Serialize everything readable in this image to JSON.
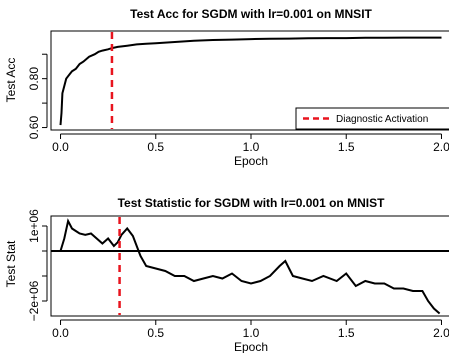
{
  "chart_data": [
    {
      "type": "line",
      "title": "Test Acc for SGDM with lr=0.001 on MNSIT",
      "xlabel": "Epoch",
      "ylabel": "Test Acc",
      "xlim": [
        -0.05,
        2.05
      ],
      "ylim": [
        0.59,
        0.995
      ],
      "xticks": [
        0.0,
        0.5,
        1.0,
        1.5,
        2.0
      ],
      "xtick_labels": [
        "0.0",
        "0.5",
        "1.0",
        "1.5",
        "2.0"
      ],
      "yticks": [
        0.6,
        0.7,
        0.8,
        0.9
      ],
      "ytick_labels": [
        "0.60",
        "",
        "0.80",
        ""
      ],
      "grid": false,
      "legend": {
        "placement": "bottom-right",
        "entries": [
          {
            "label": "Diagnostic Activation",
            "style": "dashed",
            "color": "#e8141e"
          }
        ]
      },
      "vline": {
        "x": 0.27,
        "color": "#e8141e",
        "style": "dashed"
      },
      "series": [
        {
          "color": "#000000",
          "x": [
            0.0,
            0.005,
            0.01,
            0.02,
            0.03,
            0.04,
            0.05,
            0.06,
            0.08,
            0.1,
            0.12,
            0.15,
            0.18,
            0.2,
            0.22,
            0.25,
            0.27,
            0.3,
            0.35,
            0.4,
            0.45,
            0.5,
            0.6,
            0.7,
            0.8,
            0.9,
            1.0,
            1.1,
            1.2,
            1.3,
            1.4,
            1.5,
            1.6,
            1.7,
            1.8,
            1.9,
            2.0
          ],
          "values": [
            0.61,
            0.66,
            0.74,
            0.77,
            0.8,
            0.81,
            0.82,
            0.83,
            0.84,
            0.86,
            0.87,
            0.89,
            0.9,
            0.91,
            0.915,
            0.92,
            0.925,
            0.93,
            0.935,
            0.94,
            0.943,
            0.945,
            0.95,
            0.955,
            0.958,
            0.96,
            0.962,
            0.963,
            0.964,
            0.965,
            0.966,
            0.966,
            0.967,
            0.967,
            0.968,
            0.968,
            0.968
          ]
        }
      ]
    },
    {
      "type": "line",
      "title": "Test Statistic for SGDM with lr=0.001 on MNIST",
      "xlabel": "Epoch",
      "ylabel": "Test Stat",
      "xlim": [
        -0.05,
        2.05
      ],
      "ylim": [
        -2600000,
        1400000
      ],
      "xticks": [
        0.0,
        0.5,
        1.0,
        1.5,
        2.0
      ],
      "xtick_labels": [
        "0.0",
        "0.5",
        "1.0",
        "1.5",
        "2.0"
      ],
      "yticks": [
        -2000000,
        -1000000,
        0,
        1000000
      ],
      "ytick_labels": [
        "−2e+06",
        "",
        "",
        "1e+06"
      ],
      "grid": false,
      "hline": {
        "y": 0
      },
      "vline": {
        "x": 0.31,
        "color": "#e8141e",
        "style": "dashed"
      },
      "series": [
        {
          "color": "#000000",
          "x": [
            0.0,
            0.02,
            0.04,
            0.06,
            0.08,
            0.1,
            0.13,
            0.16,
            0.19,
            0.22,
            0.25,
            0.28,
            0.3,
            0.32,
            0.35,
            0.38,
            0.4,
            0.42,
            0.45,
            0.5,
            0.55,
            0.6,
            0.65,
            0.7,
            0.75,
            0.8,
            0.85,
            0.9,
            0.95,
            1.0,
            1.05,
            1.1,
            1.15,
            1.18,
            1.22,
            1.27,
            1.32,
            1.38,
            1.45,
            1.5,
            1.55,
            1.6,
            1.65,
            1.7,
            1.75,
            1.8,
            1.85,
            1.9,
            1.93,
            1.96,
            1.99
          ],
          "values": [
            0,
            500000,
            1200000,
            900000,
            800000,
            700000,
            650000,
            700000,
            500000,
            300000,
            500000,
            200000,
            350000,
            650000,
            900000,
            600000,
            200000,
            -200000,
            -600000,
            -700000,
            -800000,
            -1000000,
            -1000000,
            -1200000,
            -1100000,
            -1000000,
            -1100000,
            -900000,
            -1200000,
            -1300000,
            -1200000,
            -1000000,
            -600000,
            -400000,
            -1000000,
            -1100000,
            -1200000,
            -1000000,
            -1200000,
            -900000,
            -1400000,
            -1200000,
            -1300000,
            -1300000,
            -1500000,
            -1500000,
            -1600000,
            -1600000,
            -2000000,
            -2300000,
            -2500000
          ]
        }
      ]
    }
  ]
}
